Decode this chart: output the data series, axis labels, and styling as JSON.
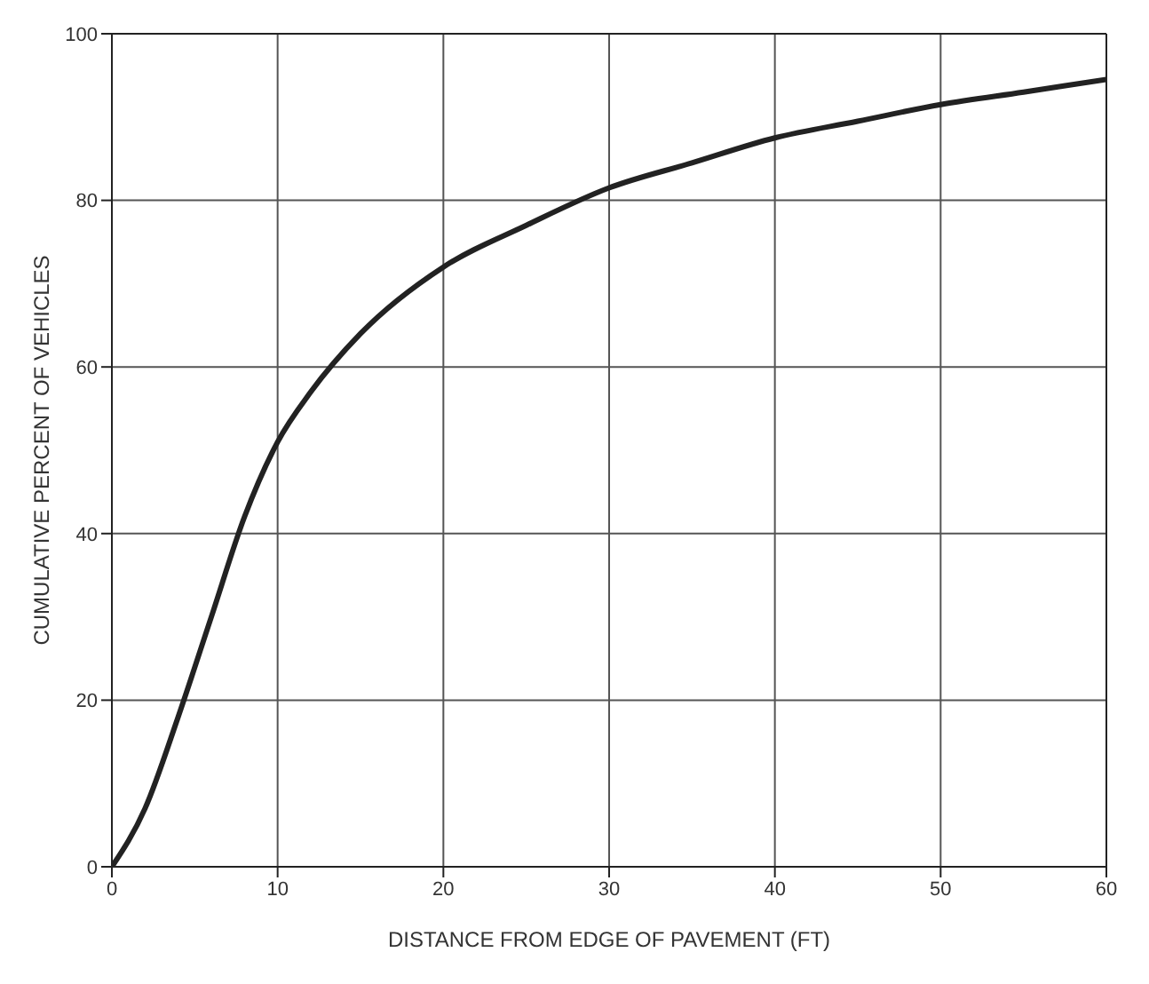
{
  "chart_data": {
    "type": "line",
    "xlabel": "DISTANCE FROM EDGE OF PAVEMENT (FT)",
    "ylabel": "CUMULATIVE PERCENT OF VEHICLES",
    "x": [
      0,
      2,
      4,
      6,
      8,
      10,
      12,
      15,
      20,
      25,
      30,
      35,
      40,
      45,
      50,
      55,
      60
    ],
    "series": [
      {
        "color": "#222222",
        "values": [
          0,
          7,
          18,
          30,
          42,
          51,
          57,
          64,
          72,
          77,
          81.5,
          84.5,
          87.5,
          89.5,
          91.5,
          93,
          94.5
        ]
      }
    ],
    "xlim": [
      0,
      60
    ],
    "xticks": [
      0,
      10,
      20,
      30,
      40,
      50,
      60
    ],
    "ylim": [
      0,
      100
    ],
    "yticks": [
      0,
      20,
      40,
      60,
      80,
      100
    ],
    "grid": true,
    "marker": "none",
    "line_style": "solid"
  }
}
